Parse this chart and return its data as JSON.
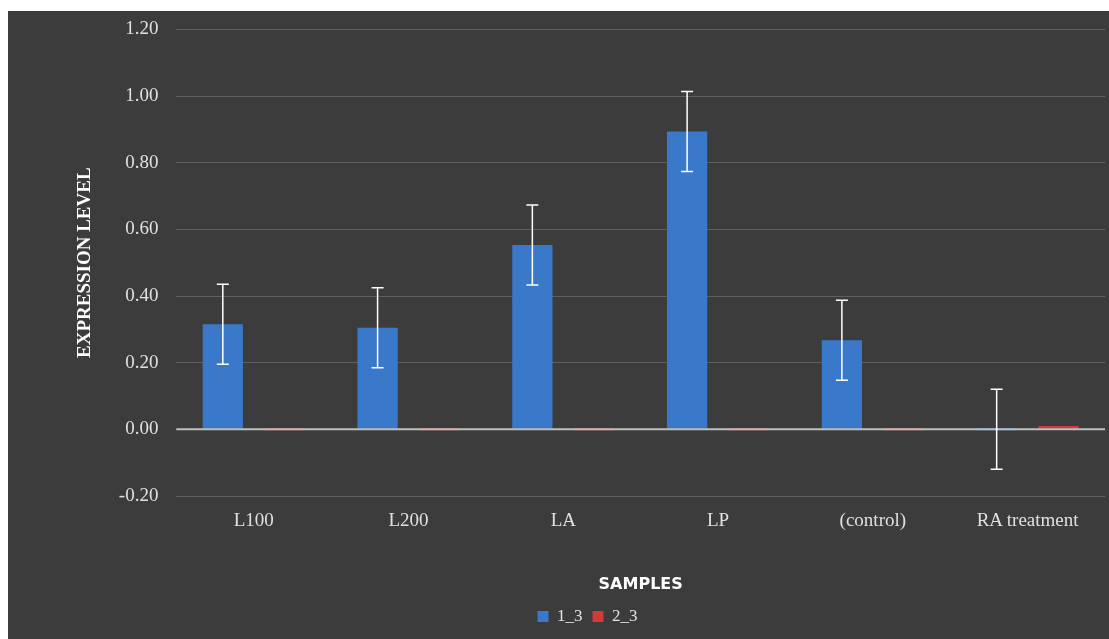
{
  "chart_data": {
    "type": "bar",
    "xlabel": "SAMPLES",
    "ylabel": "EXPRESSION LEVEL",
    "categories": [
      "L100",
      "L200",
      "LA",
      "LP",
      "(control)",
      "RA treatment"
    ],
    "series": [
      {
        "name": "1_3",
        "color": "#3a78c9",
        "values": [
          0.315,
          0.305,
          0.553,
          0.894,
          0.267,
          0
        ],
        "errors": [
          0.12,
          0.12,
          0.12,
          0.12,
          0.12,
          0.12
        ]
      },
      {
        "name": "2_3",
        "color": "#d13b3b",
        "values": [
          0,
          0,
          0,
          0,
          0,
          0.01
        ]
      }
    ],
    "ylim": [
      -0.2,
      1.2
    ],
    "yticks": [
      {
        "value": -0.2,
        "label": "-0.20"
      },
      {
        "value": 0,
        "label": "0.00"
      },
      {
        "value": 0.2,
        "label": "0.20"
      },
      {
        "value": 0.4,
        "label": "0.40"
      },
      {
        "value": 0.6,
        "label": "0.60"
      },
      {
        "value": 0.8,
        "label": "0.80"
      },
      {
        "value": 1,
        "label": "1.00"
      },
      {
        "value": 1.2,
        "label": "1.20"
      }
    ],
    "grid": "y",
    "legend": "bottom"
  }
}
